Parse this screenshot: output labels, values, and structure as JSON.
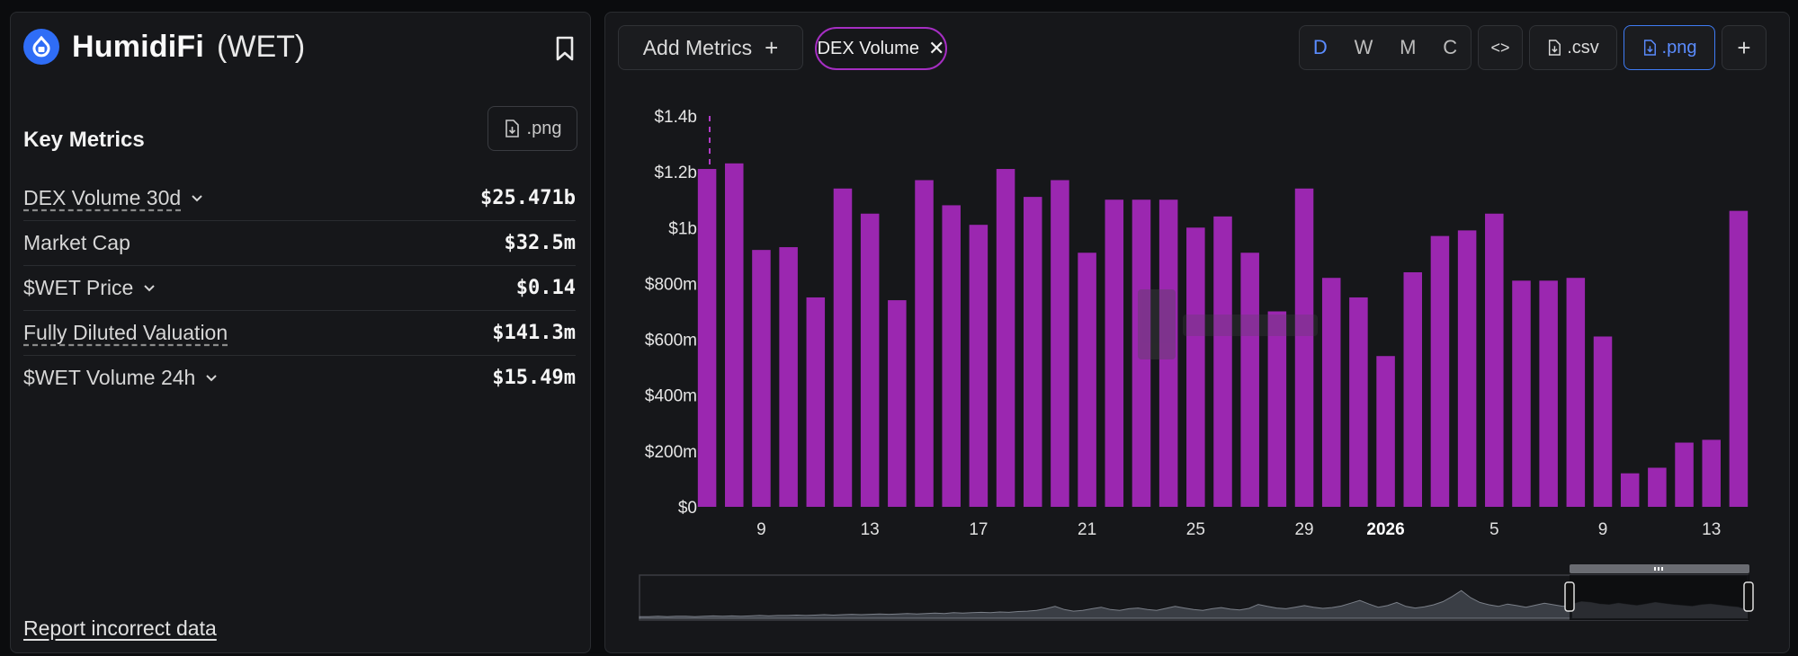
{
  "project": {
    "name": "HumidiFi",
    "ticker": "(WET)"
  },
  "key_metrics": {
    "title": "Key Metrics",
    "export_label": ".png",
    "rows": [
      {
        "label": "DEX Volume 30d",
        "value": "$25.471b"
      },
      {
        "label": "Market Cap",
        "value": "$32.5m"
      },
      {
        "label": "$WET Price",
        "value": "$0.14"
      },
      {
        "label": "Fully Diluted Valuation",
        "value": "$141.3m"
      },
      {
        "label": "$WET Volume 24h",
        "value": "$15.49m"
      }
    ]
  },
  "report_link": "Report incorrect data",
  "toolbar": {
    "add_metrics": "Add Metrics",
    "add_icon": "+",
    "chip_label": "DEX Volume",
    "chip_close": "✕",
    "periods": [
      "D",
      "W",
      "M",
      "C"
    ],
    "active_period": "D",
    "embed_label": "<>",
    "csv_label": ".csv",
    "png_label": ".png",
    "more_label": "+"
  },
  "colors": {
    "bar": "#9b27b0",
    "accent_blue": "#3f7cf5",
    "chip_border": "#a52ec2"
  },
  "chart_data": {
    "type": "bar",
    "title": "",
    "xlabel": "",
    "ylabel": "",
    "ylim": [
      0,
      1.4
    ],
    "y_unit": "billions USD",
    "y_ticks": [
      {
        "value": 0,
        "label": "$0"
      },
      {
        "value": 0.2,
        "label": "$200m"
      },
      {
        "value": 0.4,
        "label": "$400m"
      },
      {
        "value": 0.6,
        "label": "$600m"
      },
      {
        "value": 0.8,
        "label": "$800m"
      },
      {
        "value": 1.0,
        "label": "$1b"
      },
      {
        "value": 1.2,
        "label": "$1.2b"
      },
      {
        "value": 1.4,
        "label": "$1.4b"
      }
    ],
    "x_ticks": [
      {
        "index": 2,
        "label": "9",
        "bold": false
      },
      {
        "index": 6,
        "label": "13",
        "bold": false
      },
      {
        "index": 10,
        "label": "17",
        "bold": false
      },
      {
        "index": 14,
        "label": "21",
        "bold": false
      },
      {
        "index": 18,
        "label": "25",
        "bold": false
      },
      {
        "index": 22,
        "label": "29",
        "bold": false
      },
      {
        "index": 25,
        "label": "2026",
        "bold": true
      },
      {
        "index": 29,
        "label": "5",
        "bold": false
      },
      {
        "index": 33,
        "label": "9",
        "bold": false
      },
      {
        "index": 37,
        "label": "13",
        "bold": false
      }
    ],
    "values": [
      1.21,
      1.23,
      0.92,
      0.93,
      0.75,
      1.14,
      1.05,
      0.74,
      1.17,
      1.08,
      1.01,
      1.21,
      1.11,
      1.17,
      0.91,
      1.1,
      1.1,
      1.1,
      1.0,
      1.04,
      0.91,
      0.7,
      1.14,
      0.82,
      0.75,
      0.54,
      0.84,
      0.97,
      0.99,
      1.05,
      0.81,
      0.81,
      0.82,
      0.61,
      0.12,
      0.14,
      0.23,
      0.24,
      1.06
    ],
    "grid": false,
    "legend": "none"
  },
  "overview": {
    "series": [
      0.04,
      0.04,
      0.05,
      0.04,
      0.05,
      0.05,
      0.04,
      0.05,
      0.06,
      0.05,
      0.06,
      0.05,
      0.06,
      0.07,
      0.06,
      0.07,
      0.07,
      0.08,
      0.07,
      0.08,
      0.09,
      0.08,
      0.09,
      0.1,
      0.09,
      0.1,
      0.11,
      0.1,
      0.11,
      0.12,
      0.11,
      0.12,
      0.13,
      0.12,
      0.14,
      0.13,
      0.14,
      0.15,
      0.14,
      0.16,
      0.15,
      0.17,
      0.18,
      0.2,
      0.24,
      0.3,
      0.22,
      0.18,
      0.2,
      0.24,
      0.28,
      0.22,
      0.2,
      0.24,
      0.26,
      0.22,
      0.2,
      0.25,
      0.3,
      0.26,
      0.22,
      0.2,
      0.24,
      0.27,
      0.23,
      0.21,
      0.25,
      0.35,
      0.3,
      0.26,
      0.24,
      0.28,
      0.32,
      0.28,
      0.25,
      0.27,
      0.31,
      0.38,
      0.45,
      0.36,
      0.28,
      0.32,
      0.4,
      0.3,
      0.26,
      0.29,
      0.34,
      0.42,
      0.55,
      0.7,
      0.52,
      0.4,
      0.34,
      0.3,
      0.36,
      0.32,
      0.28,
      0.33,
      0.38,
      0.34,
      0.3,
      0.36,
      0.42,
      0.4,
      0.36,
      0.34,
      0.38,
      0.35,
      0.32,
      0.36,
      0.4,
      0.37,
      0.34,
      0.32,
      0.3,
      0.34,
      0.36,
      0.33,
      0.3,
      0.28,
      0.2
    ]
  }
}
